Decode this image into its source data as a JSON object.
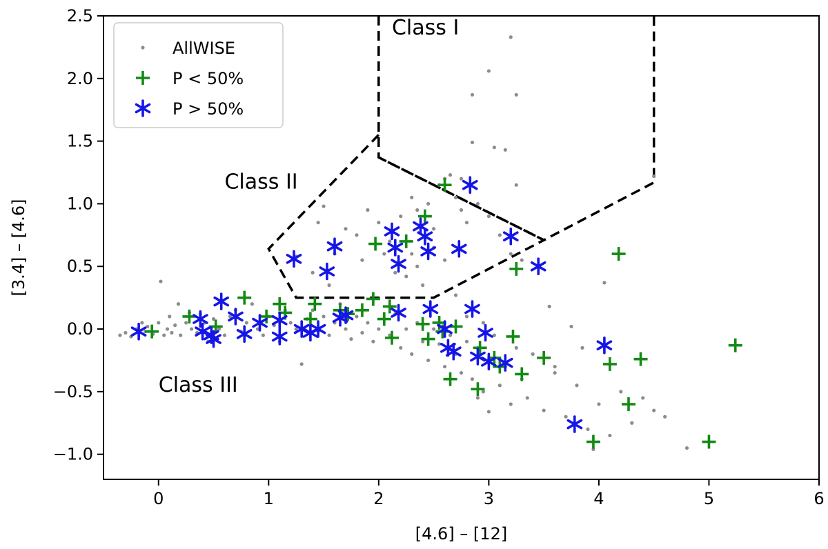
{
  "chart_data": {
    "type": "scatter",
    "title": "",
    "xlabel": "[4.6] – [12]",
    "ylabel": "[3.4] – [4.6]",
    "xlim": [
      -0.5,
      6
    ],
    "ylim": [
      -1.2,
      2.5
    ],
    "grid": false,
    "legend_position": "top-left",
    "x_ticks": [
      0,
      1,
      2,
      3,
      4,
      5,
      6
    ],
    "x_tick_labels": [
      "0",
      "1",
      "2",
      "3",
      "4",
      "5",
      "6"
    ],
    "y_ticks": [
      -1.0,
      -0.5,
      0.0,
      0.5,
      1.0,
      1.5,
      2.0,
      2.5
    ],
    "y_tick_labels": [
      "−1.0",
      "−0.5",
      "0.0",
      "0.5",
      "1.0",
      "1.5",
      "2.0",
      "2.5"
    ],
    "regions": [
      {
        "name": "Class I",
        "label": "Class I",
        "label_at": [
          2.12,
          2.35
        ],
        "boundary": [
          [
            2.0,
            2.5
          ],
          [
            2.0,
            1.37
          ],
          [
            3.5,
            0.71
          ],
          [
            4.5,
            1.17
          ],
          [
            4.5,
            2.5
          ]
        ]
      },
      {
        "name": "Class II",
        "label": "Class II",
        "label_at": [
          0.6,
          1.12
        ],
        "boundary": [
          [
            2.0,
            1.55
          ],
          [
            1.0,
            0.64
          ],
          [
            1.25,
            0.25
          ],
          [
            2.5,
            0.25
          ],
          [
            3.5,
            0.71
          ],
          [
            2.0,
            1.37
          ]
        ]
      },
      {
        "name": "Class III",
        "label": "Class III",
        "label_at": [
          0.0,
          -0.5
        ],
        "boundary": []
      }
    ],
    "series": [
      {
        "name": "AllWISE",
        "marker": "dot",
        "color": "#8c8c8c",
        "points": [
          [
            -0.35,
            -0.05
          ],
          [
            -0.3,
            -0.03
          ],
          [
            -0.25,
            -0.06
          ],
          [
            -0.2,
            0.0
          ],
          [
            -0.15,
            0.05
          ],
          [
            -0.12,
            -0.02
          ],
          [
            -0.1,
            0.02
          ],
          [
            -0.05,
            -0.04
          ],
          [
            0.0,
            0.05
          ],
          [
            0.02,
            0.38
          ],
          [
            0.05,
            -0.05
          ],
          [
            0.08,
            0.0
          ],
          [
            0.1,
            0.1
          ],
          [
            0.12,
            -0.03
          ],
          [
            0.15,
            0.03
          ],
          [
            0.18,
            0.2
          ],
          [
            0.2,
            -0.05
          ],
          [
            0.25,
            0.05
          ],
          [
            0.28,
            0.13
          ],
          [
            0.3,
            0.0
          ],
          [
            0.35,
            -0.03
          ],
          [
            0.38,
            0.12
          ],
          [
            0.42,
            0.05
          ],
          [
            0.45,
            -0.1
          ],
          [
            0.5,
            0.08
          ],
          [
            0.55,
            0.0
          ],
          [
            0.6,
            -0.05
          ],
          [
            0.65,
            0.1
          ],
          [
            0.7,
            0.15
          ],
          [
            0.75,
            -0.02
          ],
          [
            0.8,
            0.05
          ],
          [
            0.85,
            0.2
          ],
          [
            0.9,
            0.0
          ],
          [
            0.95,
            -0.05
          ],
          [
            1.0,
            0.1
          ],
          [
            1.05,
            0.03
          ],
          [
            1.1,
            -0.1
          ],
          [
            1.15,
            0.15
          ],
          [
            1.2,
            0.05
          ],
          [
            1.25,
            0.0
          ],
          [
            1.3,
            -0.28
          ],
          [
            1.35,
            0.08
          ],
          [
            1.4,
            0.15
          ],
          [
            1.45,
            -0.02
          ],
          [
            1.5,
            0.1
          ],
          [
            1.55,
            -0.05
          ],
          [
            1.6,
            0.05
          ],
          [
            1.65,
            0.2
          ],
          [
            1.7,
            0.0
          ],
          [
            1.75,
            -0.08
          ],
          [
            1.8,
            0.1
          ],
          [
            1.85,
            -0.03
          ],
          [
            1.9,
            0.05
          ],
          [
            1.95,
            -0.1
          ],
          [
            2.0,
            0.0
          ],
          [
            2.05,
            0.08
          ],
          [
            2.1,
            -0.05
          ],
          [
            2.15,
            0.12
          ],
          [
            2.2,
            -0.15
          ],
          [
            2.25,
            0.0
          ],
          [
            2.3,
            -0.2
          ],
          [
            2.35,
            0.05
          ],
          [
            2.4,
            -0.1
          ],
          [
            2.45,
            -0.25
          ],
          [
            2.5,
            0.0
          ],
          [
            2.55,
            -0.12
          ],
          [
            2.6,
            -0.3
          ],
          [
            2.65,
            -0.05
          ],
          [
            2.7,
            -0.2
          ],
          [
            2.75,
            -0.35
          ],
          [
            2.8,
            -0.1
          ],
          [
            2.85,
            -0.4
          ],
          [
            2.9,
            -0.15
          ],
          [
            2.95,
            -0.5
          ],
          [
            3.0,
            -0.25
          ],
          [
            3.05,
            -0.05
          ],
          [
            3.1,
            -0.45
          ],
          [
            3.15,
            -0.3
          ],
          [
            3.2,
            -0.6
          ],
          [
            3.25,
            -0.15
          ],
          [
            3.3,
            -0.4
          ],
          [
            3.35,
            -0.55
          ],
          [
            3.4,
            -0.2
          ],
          [
            3.5,
            -0.65
          ],
          [
            3.6,
            -0.35
          ],
          [
            3.7,
            -0.7
          ],
          [
            3.8,
            -0.45
          ],
          [
            3.9,
            -0.8
          ],
          [
            4.0,
            -0.6
          ],
          [
            4.1,
            -0.85
          ],
          [
            4.2,
            -0.5
          ],
          [
            4.3,
            -0.75
          ],
          [
            4.5,
            -0.65
          ],
          [
            4.6,
            -0.7
          ],
          [
            4.8,
            -0.95
          ],
          [
            3.0,
            -0.66
          ],
          [
            2.9,
            -0.55
          ],
          [
            3.95,
            -0.96
          ],
          [
            4.05,
            0.37
          ],
          [
            3.55,
            0.18
          ],
          [
            3.75,
            0.02
          ],
          [
            3.85,
            -0.15
          ],
          [
            4.4,
            -0.55
          ],
          [
            3.6,
            -0.3
          ],
          [
            2.7,
            0.27
          ],
          [
            2.8,
            0.1
          ],
          [
            2.95,
            0.05
          ],
          [
            1.45,
            0.85
          ],
          [
            1.5,
            0.98
          ],
          [
            1.7,
            0.8
          ],
          [
            1.8,
            0.75
          ],
          [
            1.9,
            0.95
          ],
          [
            2.0,
            0.85
          ],
          [
            2.1,
            0.7
          ],
          [
            2.2,
            0.9
          ],
          [
            2.3,
            1.05
          ],
          [
            2.35,
            0.95
          ],
          [
            2.45,
            1.0
          ],
          [
            2.5,
            0.8
          ],
          [
            2.55,
            1.15
          ],
          [
            2.6,
            1.2
          ],
          [
            2.65,
            1.23
          ],
          [
            2.7,
            1.05
          ],
          [
            2.75,
            0.95
          ],
          [
            2.8,
            0.85
          ],
          [
            2.9,
            1.0
          ],
          [
            3.0,
            0.9
          ],
          [
            3.1,
            0.75
          ],
          [
            3.2,
            0.6
          ],
          [
            3.3,
            0.55
          ],
          [
            2.25,
            0.42
          ],
          [
            2.35,
            0.5
          ],
          [
            2.4,
            0.35
          ],
          [
            2.3,
            0.6
          ],
          [
            1.6,
            0.6
          ],
          [
            1.4,
            0.45
          ],
          [
            1.55,
            0.35
          ],
          [
            1.25,
            0.58
          ],
          [
            1.85,
            0.55
          ],
          [
            2.05,
            0.6
          ],
          [
            2.15,
            0.45
          ],
          [
            2.5,
            0.65
          ],
          [
            2.6,
            0.55
          ],
          [
            3.25,
            1.15
          ],
          [
            2.85,
            1.87
          ],
          [
            3.0,
            2.06
          ],
          [
            3.2,
            2.33
          ],
          [
            3.25,
            1.87
          ],
          [
            2.85,
            1.49
          ],
          [
            3.05,
            1.45
          ],
          [
            3.15,
            1.43
          ],
          [
            4.5,
            1.22
          ],
          [
            2.75,
            1.2
          ]
        ]
      },
      {
        "name": "P < 50%",
        "legend_label": "P < 50%",
        "marker": "plus",
        "color": "#138a13",
        "points": [
          [
            -0.06,
            -0.02
          ],
          [
            0.28,
            0.1
          ],
          [
            0.52,
            0.02
          ],
          [
            0.78,
            0.25
          ],
          [
            0.98,
            0.1
          ],
          [
            1.1,
            0.2
          ],
          [
            1.15,
            0.13
          ],
          [
            1.42,
            0.2
          ],
          [
            1.38,
            0.08
          ],
          [
            1.65,
            0.15
          ],
          [
            1.72,
            0.12
          ],
          [
            1.85,
            0.15
          ],
          [
            1.95,
            0.24
          ],
          [
            1.97,
            0.68
          ],
          [
            2.05,
            0.08
          ],
          [
            2.1,
            0.18
          ],
          [
            2.12,
            -0.07
          ],
          [
            2.25,
            0.7
          ],
          [
            2.42,
            0.9
          ],
          [
            2.4,
            0.04
          ],
          [
            2.45,
            -0.08
          ],
          [
            2.55,
            0.05
          ],
          [
            2.6,
            1.15
          ],
          [
            2.58,
            -0.02
          ],
          [
            2.65,
            -0.4
          ],
          [
            2.7,
            0.02
          ],
          [
            2.9,
            -0.48
          ],
          [
            2.92,
            -0.15
          ],
          [
            3.05,
            -0.23
          ],
          [
            3.1,
            -0.3
          ],
          [
            3.22,
            -0.06
          ],
          [
            3.25,
            0.48
          ],
          [
            3.3,
            -0.36
          ],
          [
            3.5,
            -0.23
          ],
          [
            3.95,
            -0.9
          ],
          [
            4.1,
            -0.28
          ],
          [
            4.18,
            0.6
          ],
          [
            4.27,
            -0.6
          ],
          [
            4.38,
            -0.24
          ],
          [
            5.0,
            -0.9
          ],
          [
            5.24,
            -0.13
          ]
        ]
      },
      {
        "name": "P > 50%",
        "legend_label": "P > 50%",
        "marker": "star",
        "color": "#1515e8",
        "points": [
          [
            -0.18,
            -0.02
          ],
          [
            0.38,
            0.08
          ],
          [
            0.4,
            -0.02
          ],
          [
            0.48,
            -0.05
          ],
          [
            0.5,
            -0.08
          ],
          [
            0.57,
            0.22
          ],
          [
            0.7,
            0.1
          ],
          [
            0.78,
            -0.04
          ],
          [
            0.92,
            0.05
          ],
          [
            1.1,
            0.07
          ],
          [
            1.1,
            -0.06
          ],
          [
            1.23,
            0.56
          ],
          [
            1.3,
            0.0
          ],
          [
            1.38,
            -0.03
          ],
          [
            1.45,
            0.0
          ],
          [
            1.53,
            0.46
          ],
          [
            1.6,
            0.66
          ],
          [
            1.65,
            0.09
          ],
          [
            1.7,
            0.11
          ],
          [
            2.12,
            0.78
          ],
          [
            2.15,
            0.65
          ],
          [
            2.18,
            0.52
          ],
          [
            2.18,
            0.13
          ],
          [
            2.38,
            0.82
          ],
          [
            2.42,
            0.74
          ],
          [
            2.45,
            0.62
          ],
          [
            2.47,
            0.16
          ],
          [
            2.6,
            0.0
          ],
          [
            2.63,
            -0.15
          ],
          [
            2.68,
            -0.18
          ],
          [
            2.73,
            0.64
          ],
          [
            2.83,
            1.15
          ],
          [
            2.85,
            0.16
          ],
          [
            2.9,
            -0.22
          ],
          [
            2.97,
            -0.03
          ],
          [
            3.0,
            -0.26
          ],
          [
            3.15,
            -0.27
          ],
          [
            3.2,
            0.74
          ],
          [
            3.45,
            0.5
          ],
          [
            3.78,
            -0.76
          ],
          [
            4.05,
            -0.13
          ]
        ]
      }
    ]
  }
}
